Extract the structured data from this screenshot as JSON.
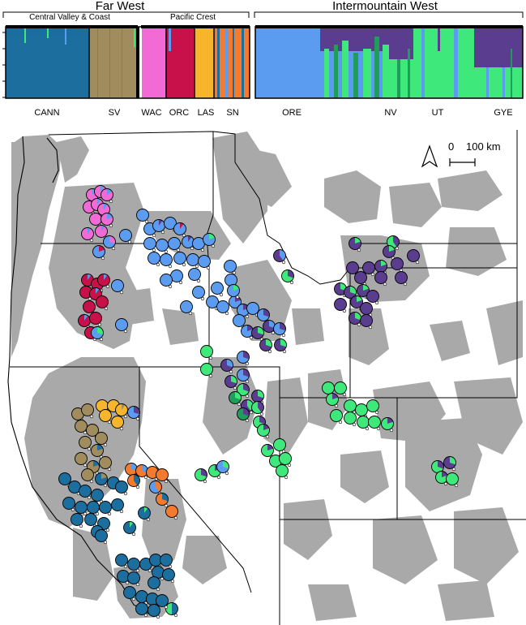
{
  "regions": {
    "far_west": "Far West",
    "intermountain_west": "Intermountain West",
    "central_valley_coast": "Central Valley & Coast",
    "pacific_crest": "Pacific Crest"
  },
  "populations": [
    "CANN",
    "SV",
    "WAC",
    "ORC",
    "LAS",
    "SN",
    "ORE",
    "NV",
    "UT",
    "GYE"
  ],
  "scale": {
    "zero": "0",
    "distance": "100 km"
  },
  "colors": {
    "CANN": "#1b6e9e",
    "SV": "#a08c5c",
    "WAC": "#f26ad6",
    "ORC": "#c8104a",
    "LAS": "#f7b52b",
    "SN": "#f47a2e",
    "ORE": "#5b9cf1",
    "NV": "#1e9e5a",
    "UT": "#3ee87a",
    "GYE": "#5a3d8f",
    "land": "#a9a9a9"
  },
  "icons": {
    "north": "north-arrow-icon",
    "scalebar": "scale-bar-icon"
  }
}
